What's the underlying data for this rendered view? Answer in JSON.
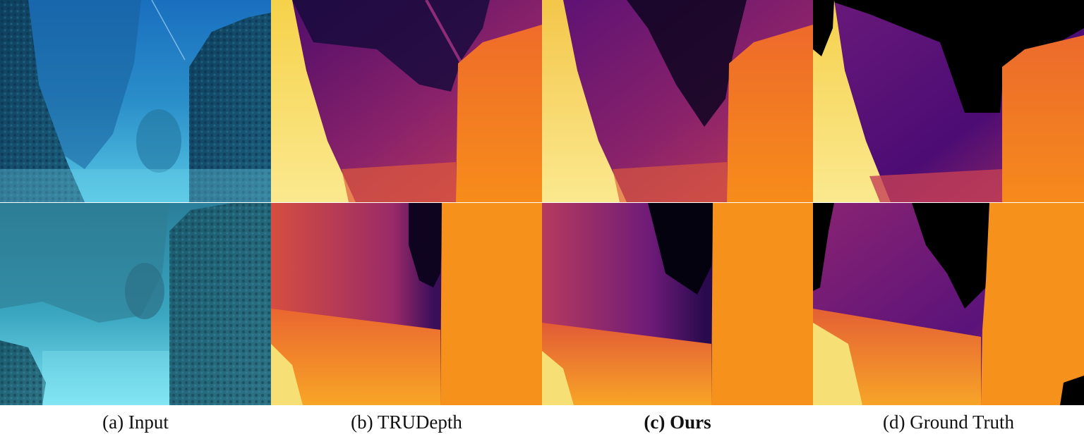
{
  "figure": {
    "columns": [
      {
        "id": "input",
        "caption": "(a) Input",
        "bold": false
      },
      {
        "id": "trudepth",
        "caption": "(b) TRUDepth",
        "bold": false
      },
      {
        "id": "ours",
        "caption": "(c) Ours",
        "bold": true
      },
      {
        "id": "gt",
        "caption": "(d) Ground Truth",
        "bold": false
      }
    ],
    "rows": [
      "top-scene",
      "bottom-scene"
    ]
  }
}
